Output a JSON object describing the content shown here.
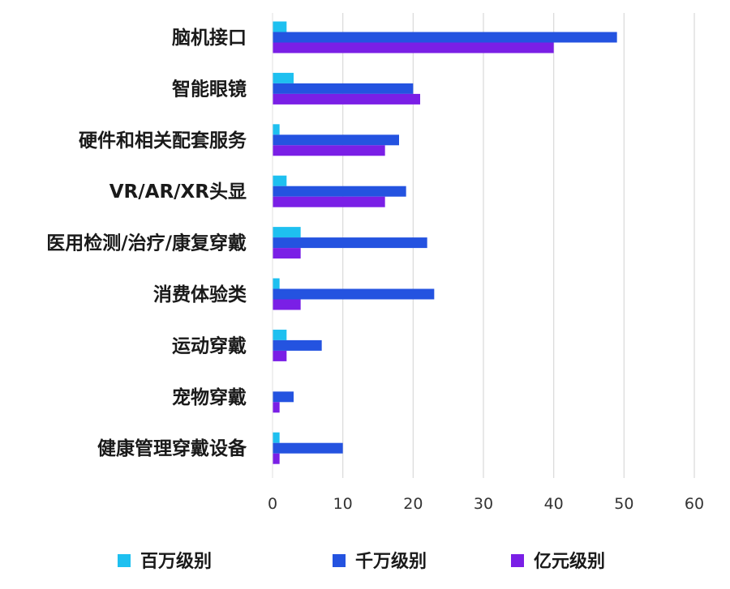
{
  "chart_data": {
    "type": "bar",
    "orientation": "horizontal",
    "categories": [
      "脑机接口",
      "智能眼镜",
      "硬件和相关配套服务",
      "VR/AR/XR头显",
      "医用检测/治疗/康复穿戴",
      "消费体验类",
      "运动穿戴",
      "宠物穿戴",
      "健康管理穿戴设备"
    ],
    "series": [
      {
        "name": "百万级别",
        "color": "#1ec0f0",
        "values": [
          2,
          3,
          1,
          2,
          4,
          1,
          2,
          0,
          1
        ]
      },
      {
        "name": "千万级别",
        "color": "#2453e0",
        "values": [
          49,
          20,
          18,
          19,
          22,
          23,
          7,
          3,
          10
        ]
      },
      {
        "name": "亿元级别",
        "color": "#7a1fe6",
        "values": [
          40,
          21,
          16,
          16,
          4,
          4,
          2,
          1,
          1
        ]
      }
    ],
    "xlim": [
      0,
      60
    ],
    "xticks": [
      "0",
      "10",
      "20",
      "30",
      "40",
      "50",
      "60"
    ],
    "grid": true,
    "legend_position": "bottom",
    "title": "",
    "xlabel": "",
    "ylabel": ""
  }
}
